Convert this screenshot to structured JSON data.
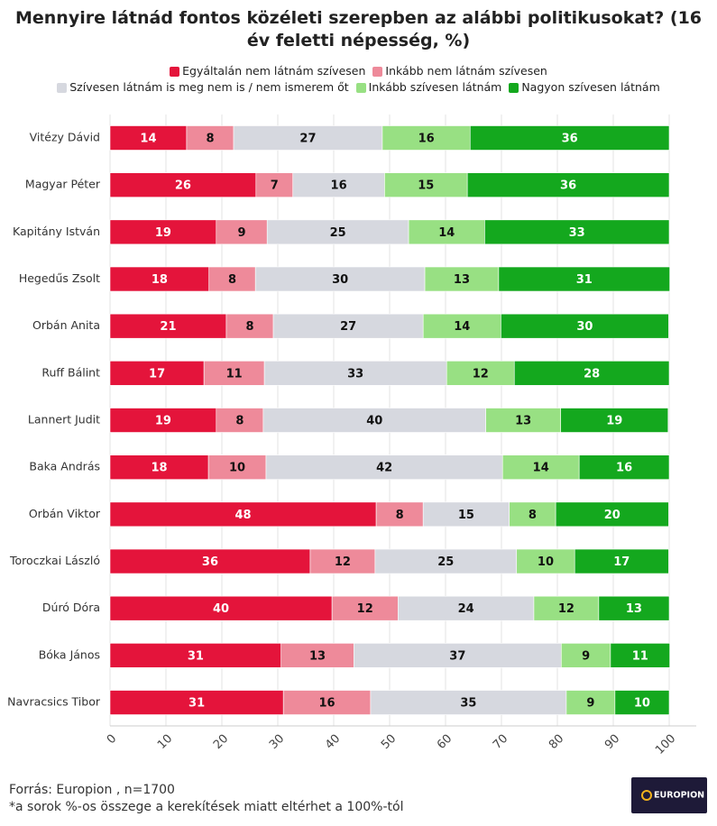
{
  "chart_data": {
    "type": "stacked_barh",
    "title": "Mennyire látnád fontos közéleti szerepben az alábbi politikusokat? (16 év feletti népesség, %)",
    "categories": [
      "Vitézy Dávid",
      "Magyar Péter",
      "Kapitány István",
      "Hegedűs Zsolt",
      "Orbán Anita",
      "Ruff Bálint",
      "Lannert Judit",
      "Baka András",
      "Orbán Viktor",
      "Toroczkai László",
      "Dúró Dóra",
      "Bóka János",
      "Navracsics Tibor"
    ],
    "series": [
      {
        "name": "Egyáltalán nem látnám szívesen",
        "color": "#e4143b",
        "values": [
          13.7,
          26.1,
          19.0,
          17.7,
          20.8,
          16.8,
          19.0,
          17.6,
          47.6,
          35.8,
          39.7,
          30.6,
          31.0
        ],
        "value_labels": [
          "14",
          "26",
          "19",
          "18",
          "21",
          "17",
          "19",
          "18",
          "48",
          "36",
          "40",
          "31",
          "31"
        ]
      },
      {
        "name": "Inkább nem látnám szívesen",
        "color": "#ee8a9a",
        "values": [
          8.4,
          6.6,
          9.1,
          8.3,
          8.4,
          10.8,
          8.4,
          10.3,
          8.4,
          11.6,
          11.8,
          13.0,
          15.6
        ],
        "value_labels": [
          "8",
          "7",
          "9",
          "8",
          "8",
          "11",
          "8",
          "10",
          "8",
          "12",
          "12",
          "13",
          "16"
        ]
      },
      {
        "name": "Szívesen látnám is meg nem is / nem ismerem őt",
        "color": "#d6d8df",
        "values": [
          26.6,
          16.4,
          25.3,
          30.3,
          26.8,
          32.6,
          39.8,
          42.3,
          15.4,
          25.3,
          24.3,
          37.1,
          35.0
        ],
        "value_labels": [
          "27",
          "16",
          "25",
          "30",
          "27",
          "33",
          "40",
          "42",
          "15",
          "25",
          "24",
          "37",
          "35"
        ]
      },
      {
        "name": "Inkább szívesen látnám",
        "color": "#98e083",
        "values": [
          15.7,
          14.8,
          13.6,
          13.2,
          13.9,
          12.1,
          13.4,
          13.7,
          8.3,
          10.4,
          11.6,
          8.8,
          8.7
        ],
        "value_labels": [
          "16",
          "15",
          "14",
          "13",
          "14",
          "12",
          "13",
          "14",
          "8",
          "10",
          "12",
          "9",
          "9"
        ]
      },
      {
        "name": "Nagyon szívesen látnám",
        "color": "#14a81e",
        "values": [
          35.6,
          36.1,
          33.0,
          30.6,
          30.0,
          27.7,
          19.2,
          16.1,
          20.2,
          16.8,
          12.6,
          10.6,
          9.7
        ],
        "value_labels": [
          "36",
          "36",
          "33",
          "31",
          "30",
          "28",
          "19",
          "16",
          "20",
          "17",
          "13",
          "11",
          "10"
        ]
      }
    ],
    "xlim": [
      0,
      100
    ],
    "xticks": [
      0,
      10,
      20,
      30,
      40,
      50,
      60,
      70,
      80,
      90,
      100
    ],
    "grid": true,
    "source": "Forrás: Europion , n=1700",
    "note": "*a sorok %-os összege a kerekítések miatt eltérhet a 100%-tól"
  },
  "logo": "EUROPION"
}
